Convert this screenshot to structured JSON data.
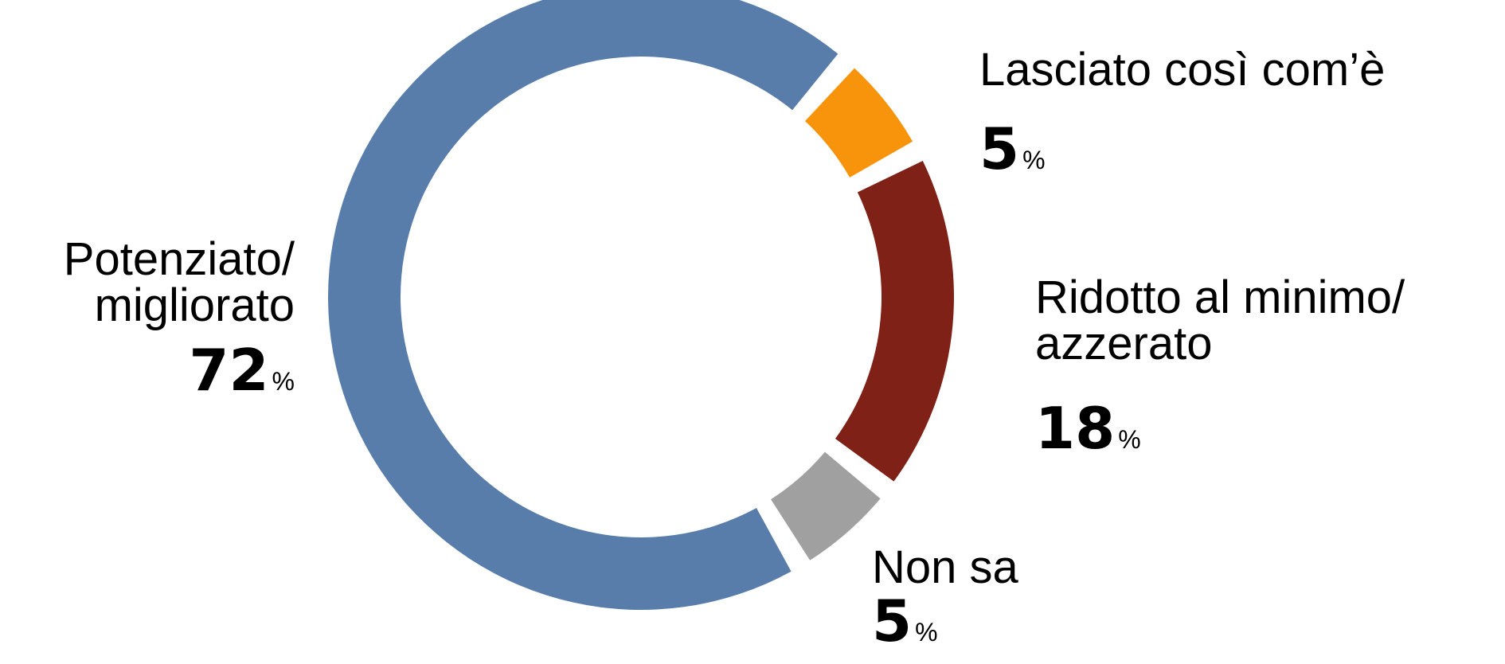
{
  "chart_data": {
    "type": "donut",
    "categories": [
      [
        "Lasciato così com’è"
      ],
      [
        "Ridotto al minimo/",
        "azzerato"
      ],
      [
        "Non sa"
      ],
      [
        "Potenziato/",
        "migliorato"
      ]
    ],
    "values": [
      5,
      18,
      5,
      72
    ],
    "unit": "%",
    "colors": [
      "#f7940c",
      "#7f2116",
      "#a0a0a0",
      "#587dab"
    ]
  }
}
